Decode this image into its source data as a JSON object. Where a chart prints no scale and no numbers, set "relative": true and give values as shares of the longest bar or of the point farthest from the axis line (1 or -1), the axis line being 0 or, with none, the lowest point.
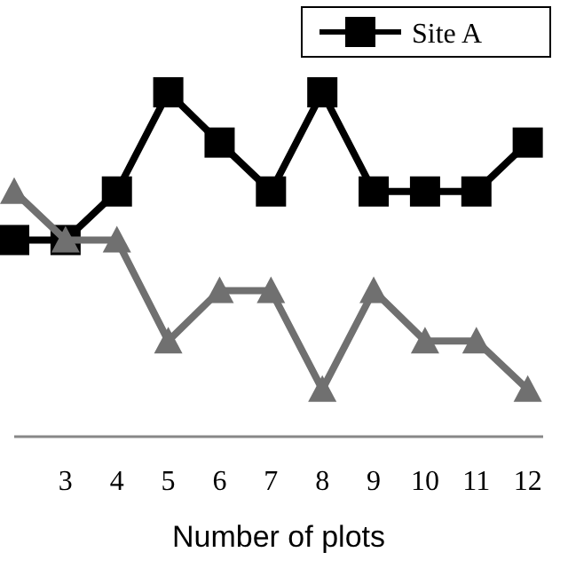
{
  "chart_data": {
    "type": "line",
    "relative": true,
    "xlabel": "Number of plots",
    "x": [
      2,
      3,
      4,
      5,
      6,
      7,
      8,
      9,
      10,
      11,
      12
    ],
    "xlim": [
      2,
      12.3
    ],
    "xticks": [
      3,
      4,
      5,
      6,
      7,
      8,
      9,
      10,
      11,
      12
    ],
    "series": [
      {
        "name": "Site A",
        "color": "#000000",
        "marker": "square",
        "values": [
          0.571,
          0.571,
          0.712,
          1,
          0.854,
          0.712,
          1,
          0.712,
          0.712,
          0.712,
          0.854
        ]
      },
      {
        "color": "#707070",
        "marker": "triangle",
        "values": [
          0.712,
          0.571,
          0.571,
          0.278,
          0.424,
          0.424,
          0.137,
          0.424,
          0.278,
          0.278,
          0.137
        ]
      }
    ],
    "legend": "top right",
    "line_style": "solid"
  }
}
